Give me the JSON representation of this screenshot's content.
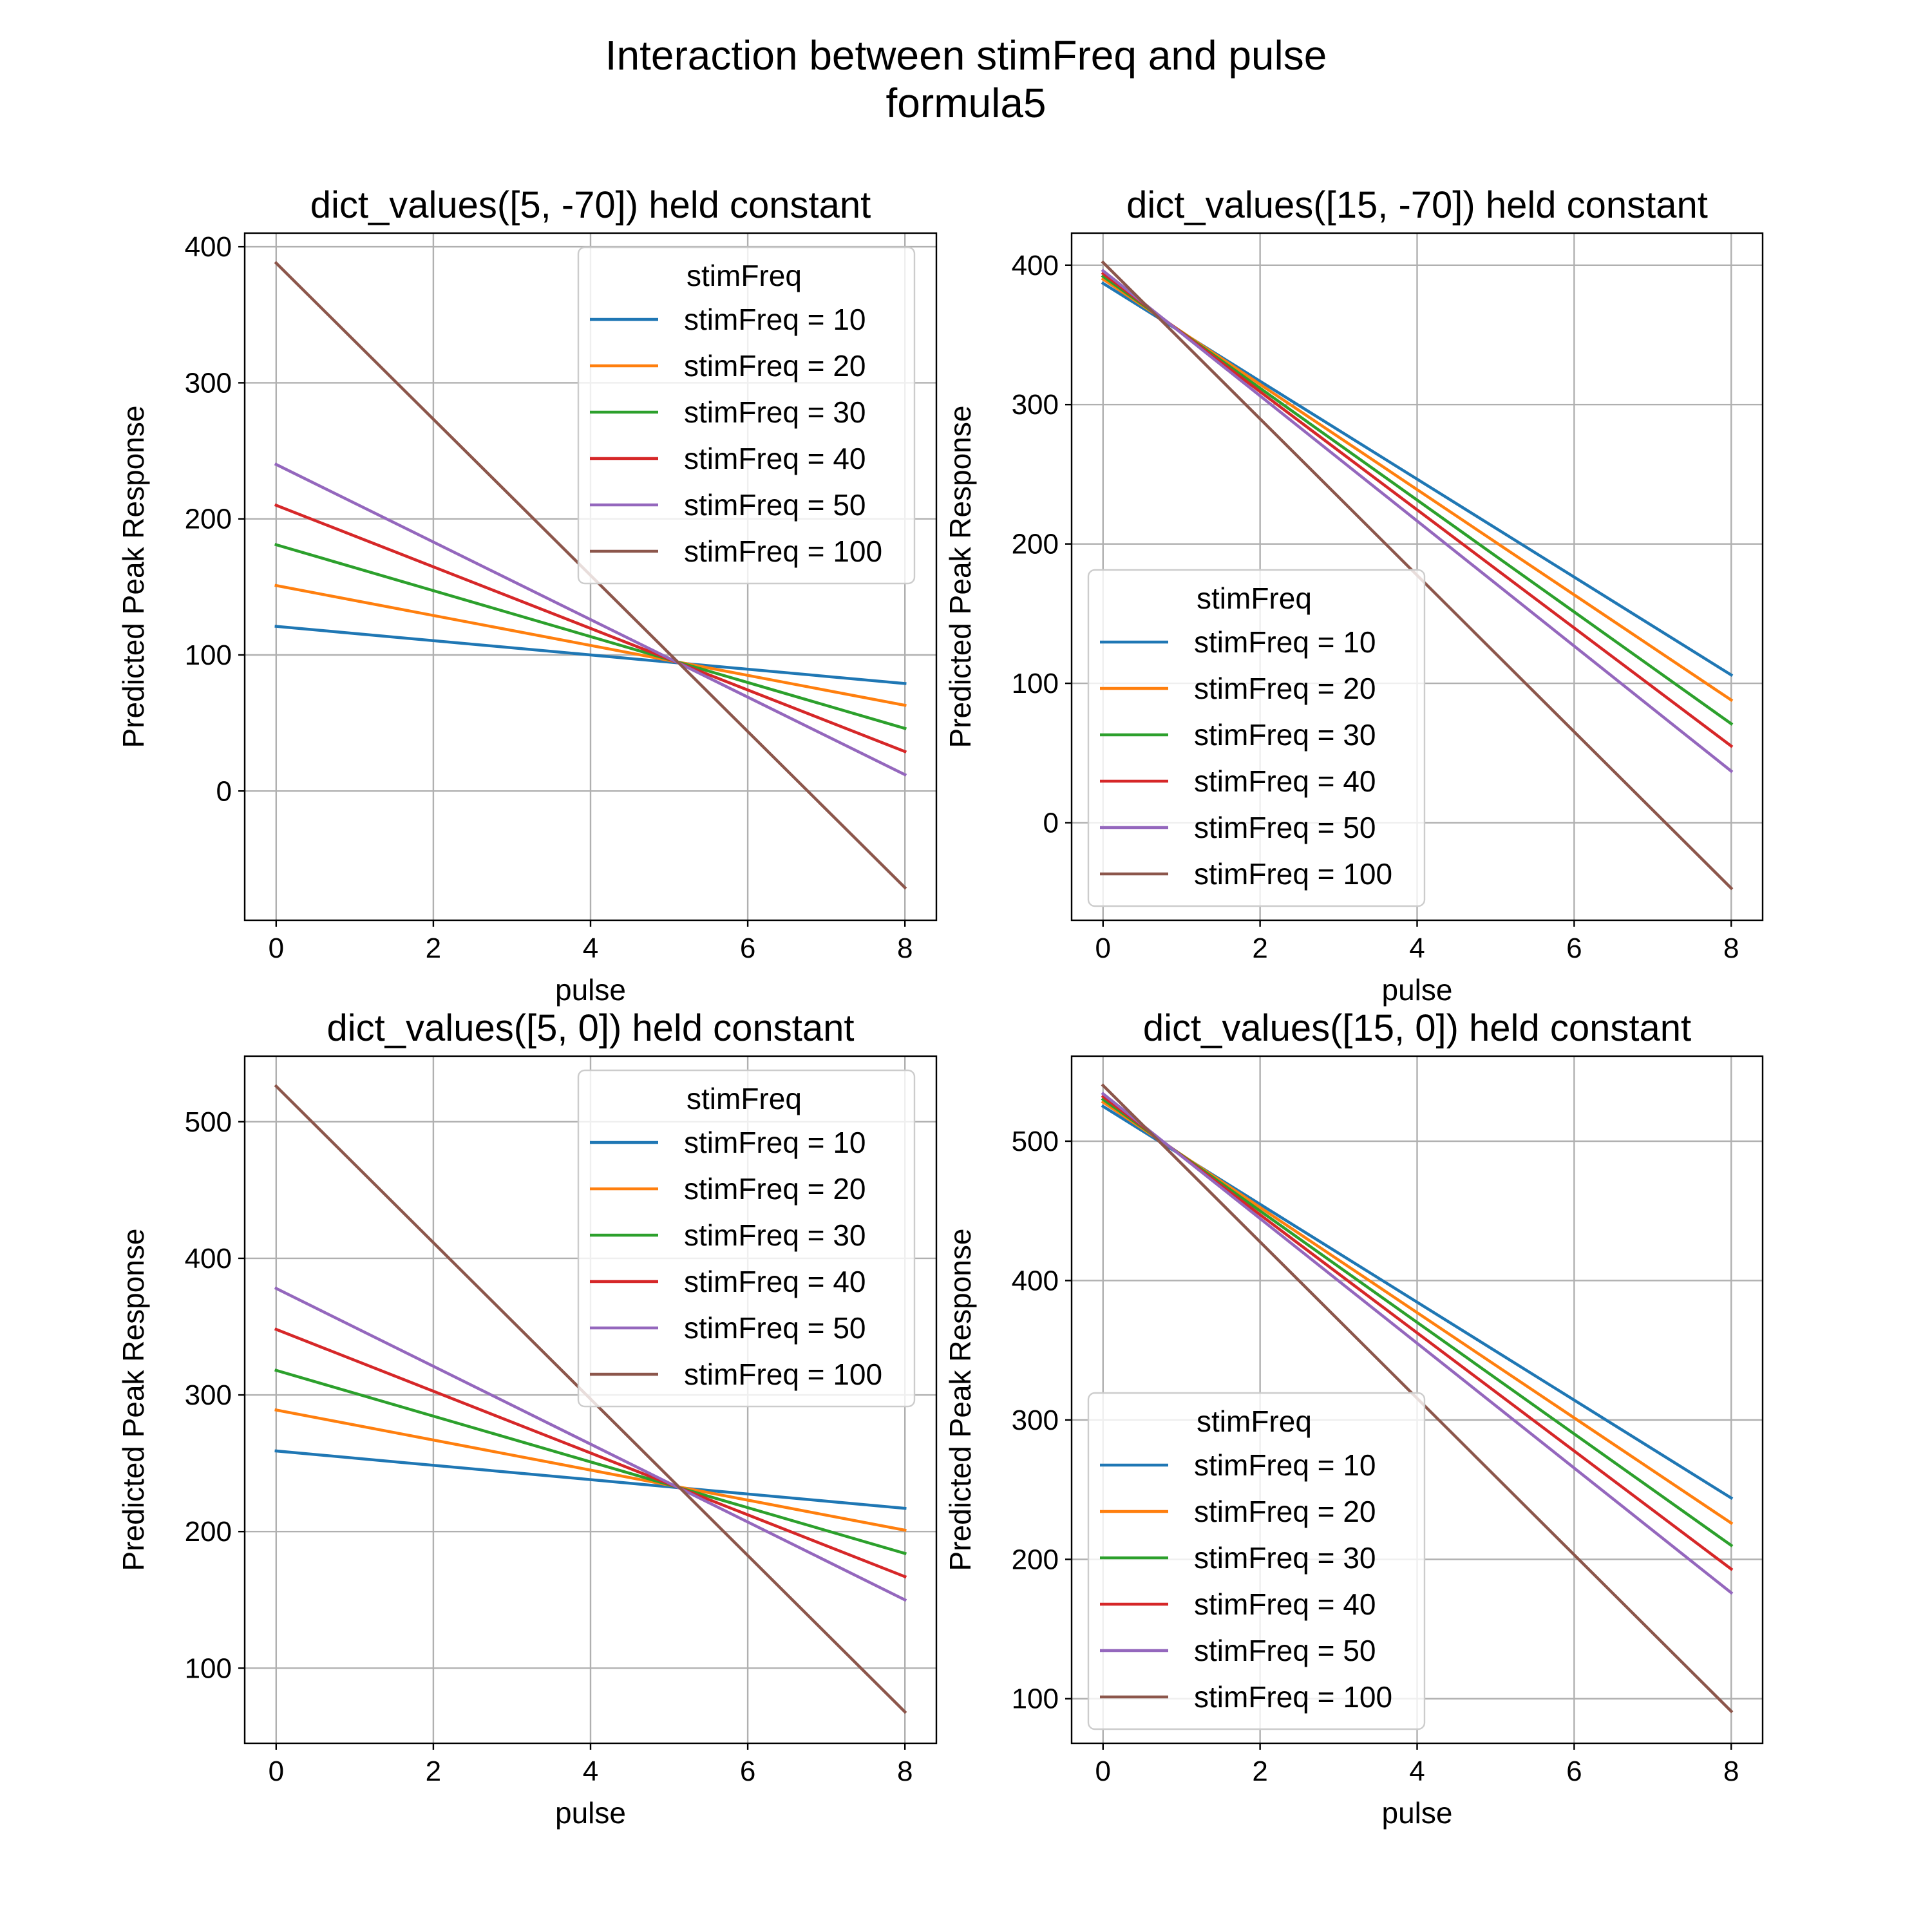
{
  "figure": {
    "title_line1": "Interaction between stimFreq and pulse",
    "title_line2": "formula5"
  },
  "chart_data": [
    {
      "type": "line",
      "title": "dict_values([5, -70]) held constant",
      "xlabel": "pulse",
      "ylabel": "Predicted Peak Response",
      "xlim": [
        -0.4,
        8.4
      ],
      "ylim": [
        -95,
        410
      ],
      "xticks": [
        0,
        2,
        4,
        6,
        8
      ],
      "yticks": [
        0,
        100,
        200,
        300,
        400
      ],
      "grid": true,
      "legend": {
        "title": "stimFreq",
        "placement": "upper right"
      },
      "x": [
        0,
        8
      ],
      "series": [
        {
          "name": "stimFreq = 10",
          "color": "#1f77b4",
          "values": [
            121,
            79
          ]
        },
        {
          "name": "stimFreq = 20",
          "color": "#ff7f0e",
          "values": [
            151,
            63
          ]
        },
        {
          "name": "stimFreq = 30",
          "color": "#2ca02c",
          "values": [
            181,
            46
          ]
        },
        {
          "name": "stimFreq = 40",
          "color": "#d62728",
          "values": [
            210,
            29
          ]
        },
        {
          "name": "stimFreq = 50",
          "color": "#9467bd",
          "values": [
            240,
            12
          ]
        },
        {
          "name": "stimFreq = 100",
          "color": "#8c564b",
          "values": [
            388,
            -71
          ]
        }
      ]
    },
    {
      "type": "line",
      "title": "dict_values([15, -70]) held constant",
      "xlabel": "pulse",
      "ylabel": "Predicted Peak Response",
      "xlim": [
        -0.4,
        8.4
      ],
      "ylim": [
        -70,
        423
      ],
      "xticks": [
        0,
        2,
        4,
        6,
        8
      ],
      "yticks": [
        0,
        100,
        200,
        300,
        400
      ],
      "grid": true,
      "legend": {
        "title": "stimFreq",
        "placement": "lower left"
      },
      "x": [
        0,
        8
      ],
      "series": [
        {
          "name": "stimFreq = 10",
          "color": "#1f77b4",
          "values": [
            387,
            106
          ]
        },
        {
          "name": "stimFreq = 20",
          "color": "#ff7f0e",
          "values": [
            390,
            88
          ]
        },
        {
          "name": "stimFreq = 30",
          "color": "#2ca02c",
          "values": [
            392,
            71
          ]
        },
        {
          "name": "stimFreq = 40",
          "color": "#d62728",
          "values": [
            394,
            55
          ]
        },
        {
          "name": "stimFreq = 50",
          "color": "#9467bd",
          "values": [
            396,
            37
          ]
        },
        {
          "name": "stimFreq = 100",
          "color": "#8c564b",
          "values": [
            402,
            -47
          ]
        }
      ]
    },
    {
      "type": "line",
      "title": "dict_values([5, 0]) held constant",
      "xlabel": "pulse",
      "ylabel": "Predicted Peak Response",
      "xlim": [
        -0.4,
        8.4
      ],
      "ylim": [
        45,
        548
      ],
      "xticks": [
        0,
        2,
        4,
        6,
        8
      ],
      "yticks": [
        100,
        200,
        300,
        400,
        500
      ],
      "grid": true,
      "legend": {
        "title": "stimFreq",
        "placement": "upper right"
      },
      "x": [
        0,
        8
      ],
      "series": [
        {
          "name": "stimFreq = 10",
          "color": "#1f77b4",
          "values": [
            259,
            217
          ]
        },
        {
          "name": "stimFreq = 20",
          "color": "#ff7f0e",
          "values": [
            289,
            201
          ]
        },
        {
          "name": "stimFreq = 30",
          "color": "#2ca02c",
          "values": [
            318,
            184
          ]
        },
        {
          "name": "stimFreq = 40",
          "color": "#d62728",
          "values": [
            348,
            167
          ]
        },
        {
          "name": "stimFreq = 50",
          "color": "#9467bd",
          "values": [
            378,
            150
          ]
        },
        {
          "name": "stimFreq = 100",
          "color": "#8c564b",
          "values": [
            526,
            68
          ]
        }
      ]
    },
    {
      "type": "line",
      "title": "dict_values([15, 0]) held constant",
      "xlabel": "pulse",
      "ylabel": "Predicted Peak Response",
      "xlim": [
        -0.4,
        8.4
      ],
      "ylim": [
        68,
        561
      ],
      "xticks": [
        0,
        2,
        4,
        6,
        8
      ],
      "yticks": [
        100,
        200,
        300,
        400,
        500
      ],
      "grid": true,
      "legend": {
        "title": "stimFreq",
        "placement": "lower left"
      },
      "x": [
        0,
        8
      ],
      "series": [
        {
          "name": "stimFreq = 10",
          "color": "#1f77b4",
          "values": [
            525,
            244
          ]
        },
        {
          "name": "stimFreq = 20",
          "color": "#ff7f0e",
          "values": [
            528,
            226
          ]
        },
        {
          "name": "stimFreq = 30",
          "color": "#2ca02c",
          "values": [
            530,
            210
          ]
        },
        {
          "name": "stimFreq = 40",
          "color": "#d62728",
          "values": [
            532,
            193
          ]
        },
        {
          "name": "stimFreq = 50",
          "color": "#9467bd",
          "values": [
            534,
            176
          ]
        },
        {
          "name": "stimFreq = 100",
          "color": "#8c564b",
          "values": [
            540,
            91
          ]
        }
      ]
    }
  ]
}
